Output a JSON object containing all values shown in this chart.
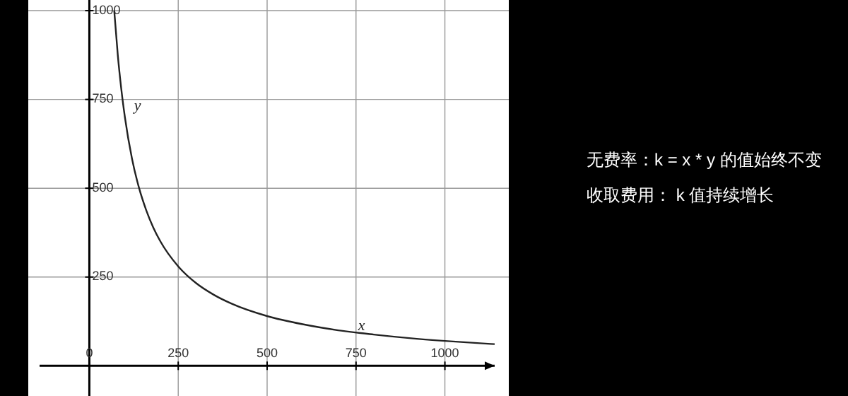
{
  "chart_data": {
    "type": "line",
    "x": [
      70,
      80,
      90,
      100,
      120,
      140,
      160,
      180,
      200,
      250,
      300,
      350,
      400,
      500,
      600,
      700,
      800,
      900,
      1000,
      1140
    ],
    "series": [
      {
        "color": "#222222",
        "values": [
          1000,
          875,
          778,
          700,
          583,
          500,
          438,
          389,
          350,
          280,
          233,
          200,
          175,
          140,
          117,
          100,
          88,
          78,
          70,
          61
        ]
      }
    ],
    "xlim": [
      -140,
      1140
    ],
    "ylim": [
      -85,
      1030
    ],
    "xticks": [
      0,
      250,
      500,
      750,
      1000
    ],
    "yticks": [
      250,
      500,
      750,
      1000
    ],
    "grid": true,
    "marker": "none",
    "line_style": "solid",
    "annotations": [
      {
        "text": "y",
        "x": 110,
        "y": 720
      },
      {
        "text": "x",
        "x": 740,
        "y": 100
      },
      "无费率：k = x * y 的值始终不变",
      "收取费用： k 值持续增长"
    ]
  }
}
